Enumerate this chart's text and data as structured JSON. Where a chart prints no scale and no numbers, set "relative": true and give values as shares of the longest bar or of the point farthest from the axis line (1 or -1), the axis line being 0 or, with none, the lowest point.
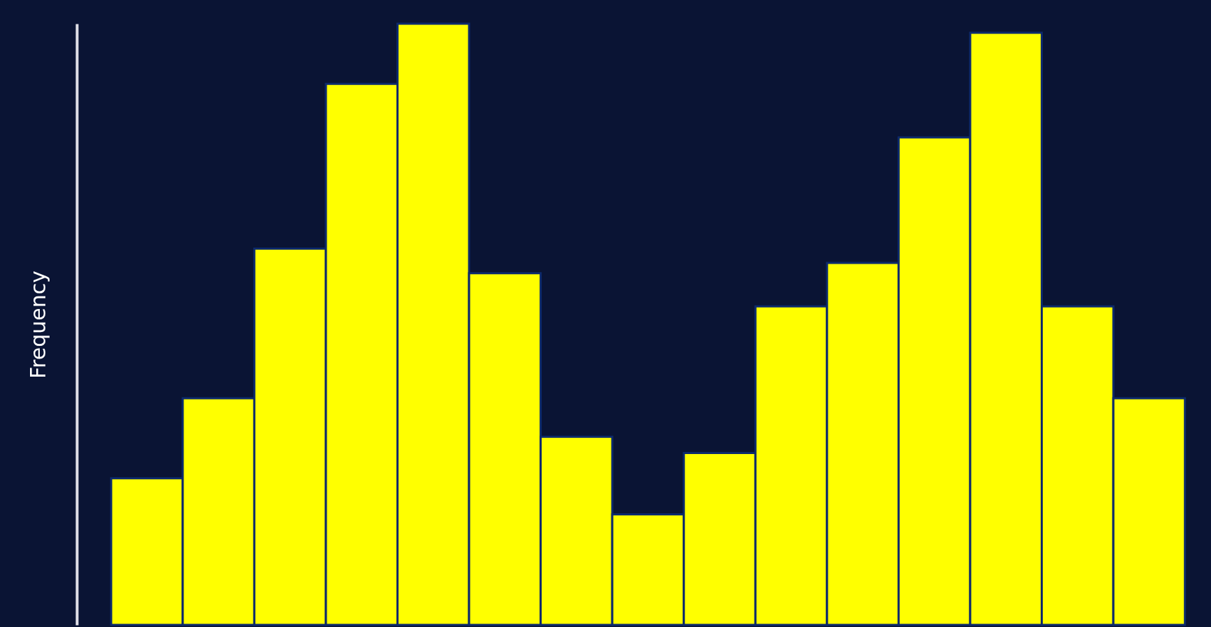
{
  "chart_data": {
    "type": "bar",
    "ylabel": "Frequency",
    "relative": true,
    "grid": false,
    "categories": [
      null,
      null,
      null,
      null,
      null,
      null,
      null,
      null,
      null,
      null,
      null,
      null,
      null,
      null,
      null
    ],
    "values": [
      0.244,
      0.377,
      0.626,
      0.9,
      1,
      0.585,
      0.313,
      0.184,
      0.286,
      0.53,
      0.602,
      0.811,
      0.985,
      0.53,
      0.377
    ],
    "color": "#ffff00"
  }
}
